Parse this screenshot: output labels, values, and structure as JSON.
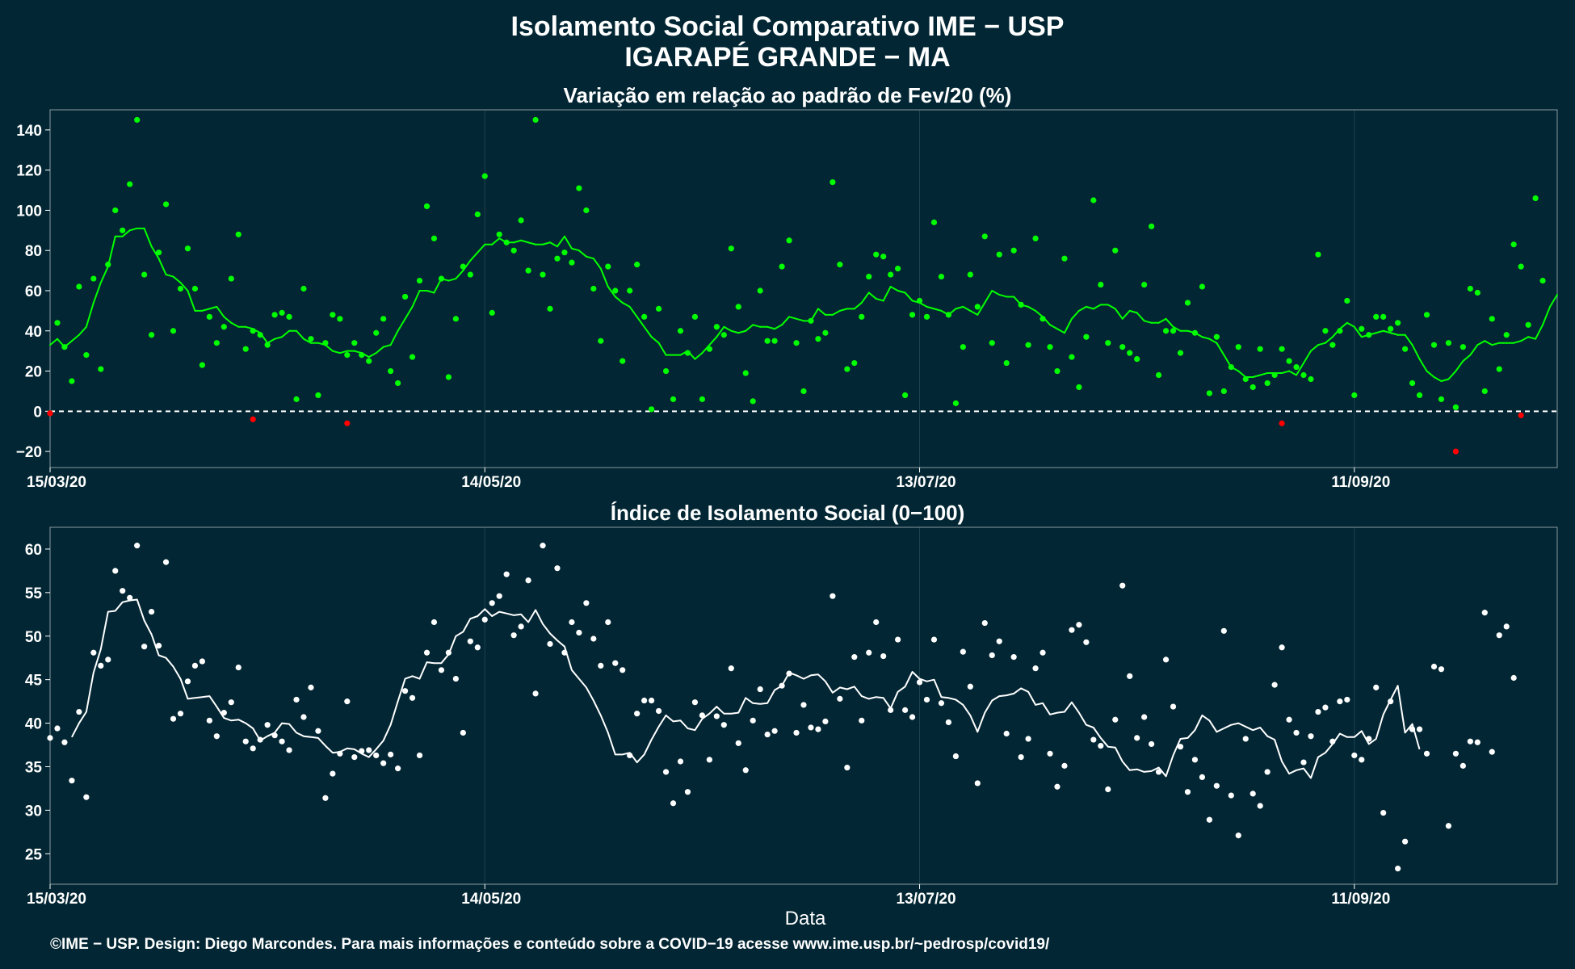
{
  "title_line1": "Isolamento Social Comparativo IME − USP",
  "title_line2": "IGARAPÉ GRANDE − MA",
  "xlabel": "Data",
  "caption": "©IME − USP. Design: Diego Marcondes. Para mais informações e conteúdo sobre a COVID−19 acesse www.ime.usp.br/~pedrosp/covid19/",
  "colors": {
    "background": "#022633",
    "panel_border": "#8a9ba2",
    "grid": "#1e4450",
    "positive": "#00ff00",
    "negative": "#ff0000",
    "index_points": "#ffffff",
    "index_line": "#ffffff",
    "zero_line": "#ffffff"
  },
  "chart_data": [
    {
      "type": "scatter",
      "title": "Variação em relação ao padrão de Fev/20 (%)",
      "x_start": "15/03/20",
      "x_ticks": [
        "15/03/20",
        "14/05/20",
        "13/07/20",
        "11/09/20"
      ],
      "x_tick_days": [
        0,
        60,
        120,
        180
      ],
      "x_range_days": [
        0,
        208
      ],
      "y_ticks": [
        -20,
        0,
        20,
        40,
        60,
        80,
        100,
        120,
        140
      ],
      "ylim": [
        -28,
        150
      ],
      "reference_line": 0,
      "series": [
        {
          "kind": "points",
          "start_day": 0,
          "values": [
            -1,
            44,
            32,
            15,
            62,
            28,
            66,
            21,
            73,
            100,
            90,
            113,
            145,
            68,
            38,
            79,
            103,
            40,
            61,
            81,
            61,
            23,
            47,
            34,
            42,
            66,
            88,
            31,
            40,
            38,
            33,
            48,
            49,
            47,
            6,
            61,
            36,
            8,
            34,
            48,
            46,
            28,
            34,
            28,
            25,
            39,
            46,
            20,
            14,
            57,
            27,
            65,
            102,
            86,
            66,
            17,
            46,
            72,
            68,
            98,
            117,
            49,
            88,
            84,
            80,
            95,
            70,
            145,
            68,
            51,
            76,
            79,
            74,
            111,
            100,
            61,
            35,
            72,
            60,
            25,
            60,
            73,
            47,
            1,
            51,
            20,
            6,
            40,
            29,
            47,
            6,
            31,
            42,
            38,
            81,
            52,
            19,
            5,
            60,
            35,
            35,
            72,
            85,
            34,
            10,
            45,
            36,
            39,
            114,
            73,
            21,
            24,
            47,
            67,
            78,
            77,
            68,
            71,
            8,
            48,
            55,
            47,
            94,
            67,
            48,
            4,
            32,
            68,
            52,
            87,
            34,
            78,
            24,
            80,
            53,
            33,
            86,
            46,
            32,
            20,
            76,
            27,
            12,
            37,
            105,
            63,
            34,
            80,
            32,
            29,
            26,
            63,
            92,
            18,
            40,
            40,
            29,
            54,
            39,
            62,
            9,
            37,
            10,
            22,
            32,
            16,
            12,
            31,
            14,
            18,
            31,
            25,
            22,
            18,
            16,
            78,
            40,
            33,
            40,
            55,
            8,
            41,
            38,
            47,
            47,
            41,
            44,
            31,
            14,
            8,
            48,
            33,
            6,
            34,
            2,
            32,
            61,
            59,
            10,
            46,
            21,
            38,
            83,
            72,
            43,
            106,
            65
          ],
          "negative_points": [
            [
              0,
              -1
            ],
            [
              28,
              -4
            ],
            [
              41,
              -6
            ],
            [
              170,
              -6
            ],
            [
              194,
              -20
            ],
            [
              203,
              -2
            ]
          ]
        },
        {
          "kind": "moving_average",
          "start_day": 0,
          "values": [
            33,
            36,
            32,
            35,
            38,
            42,
            54,
            64,
            72,
            87,
            87,
            90,
            91,
            91,
            82,
            76,
            68,
            67,
            64,
            60,
            50,
            50,
            51,
            52,
            47,
            44,
            42,
            42,
            41,
            39,
            34,
            36,
            37,
            40,
            40,
            36,
            34,
            34,
            33,
            30,
            29,
            30,
            30,
            29,
            27,
            29,
            32,
            33,
            40,
            46,
            52,
            60,
            60,
            59,
            66,
            65,
            66,
            70,
            75,
            79,
            83,
            83,
            86,
            84,
            84,
            85,
            84,
            83,
            83,
            84,
            82,
            87,
            81,
            80,
            77,
            76,
            71,
            62,
            57,
            54,
            52,
            47,
            42,
            37,
            34,
            28,
            28,
            28,
            30,
            26,
            29,
            33,
            37,
            42,
            40,
            39,
            40,
            43,
            42,
            42,
            41,
            43,
            47,
            46,
            45,
            45,
            51,
            48,
            48,
            50,
            51,
            51,
            54,
            59,
            56,
            55,
            62,
            60,
            59,
            55,
            54,
            52,
            51,
            50,
            48,
            51,
            52,
            50,
            48,
            54,
            60,
            58,
            57,
            57,
            53,
            52,
            50,
            47,
            43,
            41,
            39,
            46,
            50,
            52,
            51,
            53,
            53,
            51,
            46,
            50,
            49,
            45,
            44,
            44,
            46,
            42,
            40,
            40,
            39,
            37,
            36,
            34,
            28,
            22,
            20,
            17,
            17,
            18,
            19,
            19,
            19,
            20,
            18,
            24,
            30,
            33,
            34,
            37,
            41,
            44,
            42,
            37,
            38,
            39,
            40,
            39,
            38,
            38,
            33,
            26,
            20,
            17,
            15,
            16,
            20,
            25,
            28,
            33,
            35,
            33,
            34,
            34,
            34,
            35,
            37,
            36,
            43,
            52,
            58
          ]
        }
      ]
    },
    {
      "type": "scatter",
      "title": "Índice de Isolamento Social (0−100)",
      "x_start": "15/03/20",
      "x_ticks": [
        "15/03/20",
        "14/05/20",
        "13/07/20",
        "11/09/20"
      ],
      "x_tick_days": [
        0,
        60,
        120,
        180
      ],
      "x_range_days": [
        0,
        208
      ],
      "y_ticks": [
        25,
        30,
        35,
        40,
        45,
        50,
        55,
        60
      ],
      "ylim": [
        21.5,
        62.5
      ],
      "series": [
        {
          "kind": "points",
          "start_day": 0,
          "values": [
            38.3,
            39.4,
            37.8,
            33.4,
            41.3,
            31.5,
            48.1,
            46.6,
            47.3,
            57.5,
            55.2,
            54.4,
            60.4,
            48.8,
            52.8,
            48.9,
            58.5,
            40.5,
            41.1,
            44.8,
            46.6,
            47.1,
            40.3,
            38.5,
            41.2,
            42.4,
            46.4,
            37.9,
            37.1,
            38.1,
            39.8,
            38.6,
            37.9,
            36.9,
            42.7,
            40.7,
            44.1,
            39.1,
            31.4,
            34.2,
            36.5,
            42.5,
            36.1,
            36.8,
            36.9,
            36.3,
            35.4,
            36.4,
            34.8,
            43.7,
            42.9,
            36.3,
            48.1,
            51.6,
            46.1,
            48.1,
            45.1,
            38.9,
            49.4,
            48.7,
            51.9,
            53.8,
            54.6,
            57.1,
            50.1,
            51.1,
            56.4,
            43.4,
            60.4,
            49.1,
            57.8,
            48.1,
            51.6,
            50.4,
            53.8,
            49.7,
            46.6,
            51.6,
            46.9,
            46.1,
            36.3,
            41.1,
            42.6,
            42.6,
            41.4,
            34.4,
            30.8,
            35.6,
            32.1,
            42.4,
            40.9,
            35.8,
            40.8,
            39.8,
            46.3,
            37.7,
            34.6,
            40.3,
            43.9,
            38.7,
            39.1,
            44.3,
            45.7,
            38.9,
            42.1,
            39.5,
            39.3,
            40.2,
            54.6,
            42.8,
            34.9,
            47.6,
            40.3,
            48.1,
            51.6,
            47.7,
            41.5,
            49.6,
            41.5,
            40.7,
            44.7,
            42.7,
            49.6,
            42.3,
            40.1,
            36.2,
            48.2,
            44.2,
            33.1,
            51.5,
            47.8,
            49.4,
            38.8,
            47.6,
            36.1,
            38.2,
            46.3,
            48.1,
            36.5,
            32.7,
            35.1,
            50.7,
            51.3,
            49.3,
            38.1,
            37.4,
            32.4,
            40.4,
            55.8,
            45.4,
            38.3,
            40.7,
            37.6,
            34.4,
            47.3,
            41.9,
            37.3,
            32.1,
            35.8,
            33.8,
            28.9,
            32.8,
            50.6,
            31.7,
            27.1,
            38.2,
            31.9,
            30.5,
            34.4,
            44.4,
            48.7,
            40.4,
            38.9,
            35.5,
            38.5,
            41.3,
            41.8,
            37.9,
            42.5,
            42.7,
            36.3,
            35.8,
            38.2,
            44.1,
            29.7,
            42.5,
            23.3,
            26.4,
            39.3,
            39.3,
            36.5,
            46.5,
            46.2,
            28.2,
            36.5,
            35.1,
            37.9,
            37.8,
            52.7,
            36.7,
            50.1,
            51.1,
            45.2
          ]
        },
        {
          "kind": "moving_average",
          "start_day": 3,
          "values": [
            38.4,
            40.0,
            41.3,
            45.8,
            48.5,
            52.8,
            52.9,
            53.9,
            54.1,
            54.2,
            51.8,
            50.2,
            47.8,
            47.5,
            46.5,
            45.1,
            42.8,
            42.9,
            43.0,
            43.1,
            41.9,
            40.6,
            40.3,
            40.4,
            40.0,
            39.4,
            38.0,
            38.5,
            38.9,
            40.0,
            39.9,
            38.9,
            38.5,
            38.4,
            38.3,
            37.4,
            36.6,
            36.7,
            37.1,
            37.0,
            36.5,
            36.1,
            37.0,
            38.0,
            39.8,
            42.5,
            45.1,
            45.4,
            45.1,
            47.0,
            46.9,
            46.9,
            47.9,
            50.0,
            50.5,
            52.0,
            52.3,
            53.1,
            52.3,
            52.8,
            52.6,
            52.4,
            52.5,
            51.6,
            53.0,
            51.4,
            50.3,
            49.5,
            48.8,
            46.1,
            45.1,
            44.1,
            42.6,
            40.9,
            38.9,
            36.4,
            36.4,
            36.6,
            35.5,
            36.4,
            38.1,
            39.6,
            40.9,
            40.2,
            40.3,
            39.4,
            39.2,
            40.5,
            41.1,
            41.9,
            41.1,
            41.1,
            41.2,
            42.9,
            42.3,
            42.2,
            42.3,
            43.8,
            44.3,
            45.8,
            45.5,
            45.1,
            45.5,
            45.6,
            44.8,
            43.5,
            44.1,
            43.9,
            44.2,
            43.1,
            42.8,
            43.0,
            42.9,
            41.7,
            43.6,
            44.2,
            45.9,
            45.1,
            44.8,
            45.0,
            43.0,
            42.9,
            42.7,
            42.1,
            40.9,
            39.0,
            41.2,
            42.6,
            43.1,
            43.2,
            43.4,
            44.0,
            43.6,
            42.1,
            42.3,
            41.0,
            41.2,
            41.3,
            42.4,
            41.2,
            39.8,
            39.5,
            38.3,
            37.3,
            37.2,
            35.6,
            34.6,
            34.7,
            34.4,
            34.5,
            34.9,
            33.9,
            36.3,
            38.2,
            38.3,
            39.2,
            40.9,
            40.3,
            39.0,
            39.4,
            39.8,
            40.0,
            39.6,
            39.2,
            39.5,
            38.5,
            38.1,
            35.6,
            34.2,
            34.6,
            34.8,
            33.7,
            36.1,
            36.6,
            37.6,
            38.8,
            38.4,
            38.4,
            39.1,
            37.6,
            38.2,
            41.0,
            42.7,
            44.3,
            38.9,
            39.9,
            37.0
          ]
        }
      ]
    }
  ]
}
